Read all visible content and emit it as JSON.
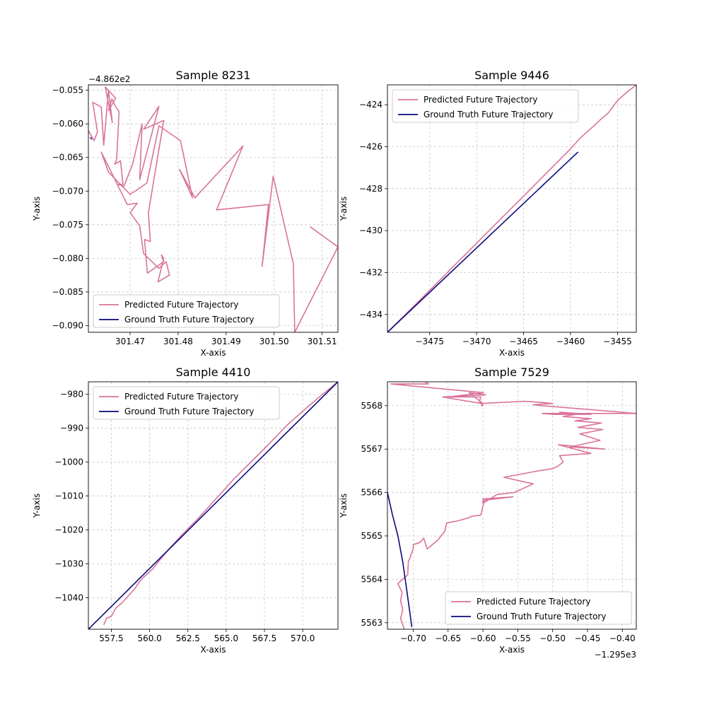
{
  "chart_data": [
    {
      "type": "line",
      "title": "Sample 8231",
      "xlabel": "X-axis",
      "ylabel": "Y-axis",
      "y_offset_label": "−4.862e2",
      "xlim": [
        301.4613,
        301.5133
      ],
      "ylim": [
        -0.091,
        -0.0542
      ],
      "xticks": [
        301.47,
        301.48,
        301.49,
        301.5,
        301.51
      ],
      "xticklabels": [
        "301.47",
        "301.48",
        "301.49",
        "301.50",
        "301.51"
      ],
      "yticks": [
        -0.09,
        -0.085,
        -0.08,
        -0.075,
        -0.07,
        -0.065,
        -0.06,
        -0.055
      ],
      "yticklabels": [
        "−0.090",
        "−0.085",
        "−0.080",
        "−0.075",
        "−0.070",
        "−0.065",
        "−0.060",
        "−0.055"
      ],
      "grid": true,
      "legend_position": "lower-left",
      "series": [
        {
          "name": "Predicted Future Trajectory",
          "color": "#d9739b",
          "x": [
            301.4613,
            301.4625,
            301.4632,
            301.4622,
            301.464,
            301.4645,
            301.4655,
            301.4663,
            301.4648,
            301.467,
            301.4655,
            301.4662,
            301.4668,
            301.4677,
            301.4672,
            301.4668,
            301.468,
            301.4685,
            301.4675,
            301.4687,
            301.4705,
            301.4725,
            301.472,
            301.476,
            301.4728,
            301.477,
            301.4738,
            301.4742,
            301.473,
            301.4736,
            301.477,
            301.4765,
            301.477,
            301.4758,
            301.4782,
            301.4775,
            301.476,
            301.4728,
            301.472,
            301.47,
            301.4715,
            301.4694,
            301.464,
            301.4655,
            301.47,
            301.4735,
            301.476,
            301.4805,
            301.483,
            301.4803,
            301.4835,
            301.4935,
            301.488,
            301.4988,
            301.4975,
            301.4998,
            301.504,
            301.5043,
            301.5133,
            301.5075
          ],
          "y": [
            -0.061,
            -0.0625,
            -0.0612,
            -0.0568,
            -0.0575,
            -0.0632,
            -0.055,
            -0.0598,
            -0.0545,
            -0.0562,
            -0.058,
            -0.0563,
            -0.0572,
            -0.0582,
            -0.0652,
            -0.066,
            -0.0655,
            -0.069,
            -0.069,
            -0.0693,
            -0.066,
            -0.06,
            -0.0683,
            -0.0574,
            -0.0608,
            -0.0595,
            -0.0732,
            -0.0775,
            -0.0772,
            -0.0822,
            -0.0805,
            -0.0795,
            -0.08,
            -0.0835,
            -0.0825,
            -0.0805,
            -0.0815,
            -0.0793,
            -0.0752,
            -0.0732,
            -0.0718,
            -0.072,
            -0.0642,
            -0.0672,
            -0.0705,
            -0.0688,
            -0.0603,
            -0.0625,
            -0.071,
            -0.0668,
            -0.071,
            -0.0633,
            -0.0728,
            -0.072,
            -0.0812,
            -0.0678,
            -0.0808,
            -0.091,
            -0.0783,
            -0.0753
          ]
        },
        {
          "name": "Ground Truth Future Trajectory",
          "color": "#0a0a7d",
          "x": [
            301.4617,
            301.462
          ],
          "y": [
            -0.062,
            -0.0623
          ]
        }
      ]
    },
    {
      "type": "line",
      "title": "Sample 9446",
      "xlabel": "X-axis",
      "ylabel": "Y-axis",
      "xlim": [
        -3479.5,
        -3453.0
      ],
      "ylim": [
        -434.85,
        -423.05
      ],
      "xticks": [
        -3475,
        -3470,
        -3465,
        -3460,
        -3455
      ],
      "xticklabels": [
        "−3475",
        "−3470",
        "−3465",
        "−3460",
        "−3455"
      ],
      "yticks": [
        -434,
        -432,
        -430,
        -428,
        -426,
        -424
      ],
      "yticklabels": [
        "−434",
        "−432",
        "−430",
        "−428",
        "−426",
        "−424"
      ],
      "grid": true,
      "legend_position": "upper-left",
      "series": [
        {
          "name": "Predicted Future Trajectory",
          "color": "#d9739b",
          "x": [
            -3479.5,
            -3476.0,
            -3472.0,
            -3468.0,
            -3464.0,
            -3462.0,
            -3460.0,
            -3459.0,
            -3458.5,
            -3457.5,
            -3456.8,
            -3456.0,
            -3455.0,
            -3454.0,
            -3453.0
          ],
          "y": [
            -434.85,
            -433.3,
            -431.5,
            -429.7,
            -427.9,
            -427.0,
            -426.1,
            -425.6,
            -425.4,
            -425.0,
            -424.7,
            -424.4,
            -423.8,
            -423.4,
            -423.05
          ]
        },
        {
          "name": "Ground Truth Future Trajectory",
          "color": "#0a0a7d",
          "x": [
            -3479.5,
            -3459.2
          ],
          "y": [
            -434.85,
            -426.25
          ]
        }
      ]
    },
    {
      "type": "line",
      "title": "Sample 4410",
      "xlabel": "X-axis",
      "ylabel": "Y-axis",
      "xlim": [
        556.0,
        572.3
      ],
      "ylim": [
        -1049.3,
        -976.3
      ],
      "xticks": [
        557.5,
        560.0,
        562.5,
        565.0,
        567.5,
        570.0
      ],
      "xticklabels": [
        "557.5",
        "560.0",
        "562.5",
        "565.0",
        "567.5",
        "570.0"
      ],
      "yticks": [
        -1040,
        -1030,
        -1020,
        -1010,
        -1000,
        -990,
        -980
      ],
      "yticklabels": [
        "−1040",
        "−1030",
        "−1020",
        "−1010",
        "−1000",
        "−990",
        "−980"
      ],
      "grid": true,
      "legend_position": "upper-left",
      "series": [
        {
          "name": "Predicted Future Trajectory",
          "color": "#d9739b",
          "x": [
            557.0,
            557.2,
            557.5,
            557.8,
            558.2,
            558.6,
            559.0,
            559.3,
            559.6,
            560.2,
            561.0,
            562.0,
            563.2,
            564.5,
            565.5,
            566.5,
            567.5,
            569.0,
            570.5,
            572.3
          ],
          "y": [
            -1048.0,
            -1046.0,
            -1045.5,
            -1043.0,
            -1041.5,
            -1039.5,
            -1037.5,
            -1035.5,
            -1034.0,
            -1031.5,
            -1027.0,
            -1022.0,
            -1016.5,
            -1010.0,
            -1005.0,
            -1000.5,
            -996.0,
            -989.0,
            -983.0,
            -976.3
          ]
        },
        {
          "name": "Ground Truth Future Trajectory",
          "color": "#0a0a7d",
          "x": [
            556.0,
            572.3
          ],
          "y": [
            -1049.3,
            -976.3
          ]
        }
      ]
    },
    {
      "type": "line",
      "title": "Sample 7529",
      "xlabel": "X-axis",
      "ylabel": "Y-axis",
      "x_offset_label": "−1.295e3",
      "xlim": [
        -0.737,
        -0.38
      ],
      "ylim": [
        5562.85,
        5568.55
      ],
      "xticks": [
        -0.7,
        -0.65,
        -0.6,
        -0.55,
        -0.5,
        -0.45,
        -0.4
      ],
      "xticklabels": [
        "−0.70",
        "−0.65",
        "−0.60",
        "−0.55",
        "−0.50",
        "−0.45",
        "−0.40"
      ],
      "yticks": [
        5563,
        5564,
        5565,
        5566,
        5567,
        5568
      ],
      "yticklabels": [
        "5563",
        "5564",
        "5565",
        "5566",
        "5567",
        "5568"
      ],
      "grid": true,
      "legend_position": "lower-right",
      "series": [
        {
          "name": "Predicted Future Trajectory",
          "color": "#d9739b",
          "x": [
            -0.713,
            -0.718,
            -0.715,
            -0.718,
            -0.716,
            -0.722,
            -0.708,
            -0.707,
            -0.7,
            -0.7,
            -0.69,
            -0.685,
            -0.68,
            -0.665,
            -0.655,
            -0.652,
            -0.635,
            -0.62,
            -0.617,
            -0.603,
            -0.598,
            -0.557,
            -0.6,
            -0.6,
            -0.58,
            -0.555,
            -0.528,
            -0.57,
            -0.52,
            -0.5,
            -0.493,
            -0.485,
            -0.49,
            -0.445,
            -0.492,
            -0.425,
            -0.475,
            -0.432,
            -0.461,
            -0.428,
            -0.464,
            -0.43,
            -0.468,
            -0.445,
            -0.485,
            -0.467,
            -0.49,
            -0.445,
            -0.5,
            -0.515,
            -0.38,
            -0.515,
            -0.528,
            -0.5,
            -0.52,
            -0.54,
            -0.602,
            -0.658,
            -0.596,
            -0.62,
            -0.6,
            -0.602,
            -0.6,
            -0.605,
            -0.603,
            -0.65,
            -0.599,
            -0.732,
            -0.678,
            -0.683
          ],
          "y": [
            5562.85,
            5563.1,
            5563.3,
            5563.5,
            5563.7,
            5563.9,
            5564.1,
            5564.4,
            5564.7,
            5564.8,
            5564.85,
            5564.95,
            5564.7,
            5564.9,
            5565.1,
            5565.3,
            5565.35,
            5565.42,
            5565.45,
            5565.48,
            5565.82,
            5565.9,
            5565.85,
            5565.75,
            5565.95,
            5566.0,
            5566.2,
            5566.35,
            5566.5,
            5566.55,
            5566.6,
            5566.7,
            5566.85,
            5566.9,
            5567.1,
            5567.0,
            5567.05,
            5567.2,
            5567.35,
            5567.45,
            5567.5,
            5567.6,
            5567.65,
            5567.7,
            5567.75,
            5567.8,
            5567.85,
            5567.8,
            5567.8,
            5567.82,
            5567.82,
            5568.0,
            5568.02,
            5568.05,
            5568.08,
            5568.1,
            5568.05,
            5568.2,
            5568.25,
            5568.3,
            5568.05,
            5568.0,
            5568.0,
            5568.1,
            5568.2,
            5568.2,
            5568.3,
            5568.5,
            5568.5,
            5568.55
          ]
        },
        {
          "name": "Ground Truth Future Trajectory",
          "color": "#0a0a7d",
          "x": [
            -0.737,
            -0.73,
            -0.722,
            -0.715,
            -0.708,
            -0.702
          ],
          "y": [
            5566.0,
            5565.5,
            5565.0,
            5564.4,
            5563.6,
            5562.9
          ]
        }
      ]
    }
  ]
}
